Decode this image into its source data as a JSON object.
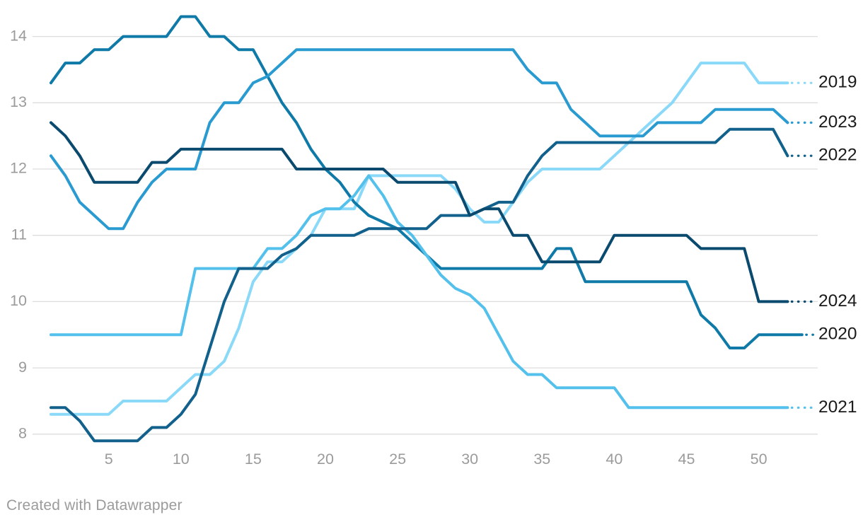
{
  "chart_data": {
    "type": "line",
    "title": "",
    "x_axis": {
      "unit": "week-of-year",
      "tick_labels": [
        5,
        10,
        15,
        20,
        25,
        30,
        35,
        40,
        45,
        50
      ],
      "range": [
        1,
        53
      ],
      "grid": false
    },
    "y_axis": {
      "tick_labels": [
        8,
        9,
        10,
        11,
        12,
        13,
        14
      ],
      "range": [
        7.9,
        14.3
      ],
      "grid": true
    },
    "legend_position": "right-end-labels",
    "series": [
      {
        "name": "2019",
        "color": "#8ad9f8",
        "values": [
          8.3,
          8.3,
          8.3,
          8.3,
          8.3,
          8.5,
          8.5,
          8.5,
          8.5,
          8.7,
          8.9,
          8.9,
          9.1,
          9.6,
          10.3,
          10.6,
          10.6,
          10.8,
          11.0,
          11.4,
          11.4,
          11.4,
          11.9,
          11.9,
          11.9,
          11.9,
          11.9,
          11.9,
          11.7,
          11.4,
          11.2,
          11.2,
          11.5,
          11.8,
          12.0,
          12.0,
          12.0,
          12.0,
          12.0,
          12.2,
          12.4,
          12.6,
          12.8,
          13.0,
          13.3,
          13.6,
          13.6,
          13.6,
          13.6,
          13.3,
          13.3,
          13.3
        ]
      },
      {
        "name": "2020",
        "color": "#0f7aa8",
        "values": [
          13.3,
          13.6,
          13.6,
          13.8,
          13.8,
          14.0,
          14.0,
          14.0,
          14.0,
          14.3,
          14.3,
          14.0,
          14.0,
          13.8,
          13.8,
          13.4,
          13.0,
          12.7,
          12.3,
          12.0,
          11.8,
          11.5,
          11.3,
          11.2,
          11.1,
          10.9,
          10.7,
          10.5,
          10.5,
          10.5,
          10.5,
          10.5,
          10.5,
          10.5,
          10.5,
          10.8,
          10.8,
          10.3,
          10.3,
          10.3,
          10.3,
          10.3,
          10.3,
          10.3,
          10.3,
          9.8,
          9.6,
          9.3,
          9.3,
          9.5,
          9.5,
          9.5,
          9.5
        ]
      },
      {
        "name": "2021",
        "color": "#54c0ec",
        "values": [
          9.5,
          9.5,
          9.5,
          9.5,
          9.5,
          9.5,
          9.5,
          9.5,
          9.5,
          9.5,
          10.5,
          10.5,
          10.5,
          10.5,
          10.5,
          10.8,
          10.8,
          11.0,
          11.3,
          11.4,
          11.4,
          11.6,
          11.9,
          11.6,
          11.2,
          11.0,
          10.7,
          10.4,
          10.2,
          10.1,
          9.9,
          9.5,
          9.1,
          8.9,
          8.9,
          8.7,
          8.7,
          8.7,
          8.7,
          8.7,
          8.4,
          8.4,
          8.4,
          8.4,
          8.4,
          8.4,
          8.4,
          8.4,
          8.4,
          8.4,
          8.4,
          8.4
        ]
      },
      {
        "name": "2022",
        "color": "#12618c",
        "values": [
          8.4,
          8.4,
          8.2,
          7.9,
          7.9,
          7.9,
          7.9,
          8.1,
          8.1,
          8.3,
          8.6,
          9.3,
          10.0,
          10.5,
          10.5,
          10.5,
          10.7,
          10.8,
          11.0,
          11.0,
          11.0,
          11.0,
          11.1,
          11.1,
          11.1,
          11.1,
          11.1,
          11.3,
          11.3,
          11.3,
          11.4,
          11.5,
          11.5,
          11.9,
          12.2,
          12.4,
          12.4,
          12.4,
          12.4,
          12.4,
          12.4,
          12.4,
          12.4,
          12.4,
          12.4,
          12.4,
          12.4,
          12.6,
          12.6,
          12.6,
          12.6,
          12.2
        ]
      },
      {
        "name": "2023",
        "color": "#2a9bd0",
        "values": [
          12.2,
          11.9,
          11.5,
          11.3,
          11.1,
          11.1,
          11.5,
          11.8,
          12.0,
          12.0,
          12.0,
          12.7,
          13.0,
          13.0,
          13.3,
          13.4,
          13.6,
          13.8,
          13.8,
          13.8,
          13.8,
          13.8,
          13.8,
          13.8,
          13.8,
          13.8,
          13.8,
          13.8,
          13.8,
          13.8,
          13.8,
          13.8,
          13.8,
          13.5,
          13.3,
          13.3,
          12.9,
          12.7,
          12.5,
          12.5,
          12.5,
          12.5,
          12.7,
          12.7,
          12.7,
          12.7,
          12.9,
          12.9,
          12.9,
          12.9,
          12.9,
          12.7
        ]
      },
      {
        "name": "2024",
        "color": "#0b4a6f",
        "values": [
          12.7,
          12.5,
          12.2,
          11.8,
          11.8,
          11.8,
          11.8,
          12.1,
          12.1,
          12.3,
          12.3,
          12.3,
          12.3,
          12.3,
          12.3,
          12.3,
          12.3,
          12.0,
          12.0,
          12.0,
          12.0,
          12.0,
          12.0,
          12.0,
          11.8,
          11.8,
          11.8,
          11.8,
          11.8,
          11.3,
          11.4,
          11.4,
          11.0,
          11.0,
          10.6,
          10.6,
          10.6,
          10.6,
          10.6,
          11.0,
          11.0,
          11.0,
          11.0,
          11.0,
          11.0,
          10.8,
          10.8,
          10.8,
          10.8,
          10.0,
          10.0,
          10.0
        ]
      }
    ],
    "colors": {
      "grid": "#dddddd",
      "tick_label": "#9b9b9b",
      "series_end_label": "#1a1a1a"
    }
  },
  "footer": {
    "credit": "Created with Datawrapper"
  }
}
